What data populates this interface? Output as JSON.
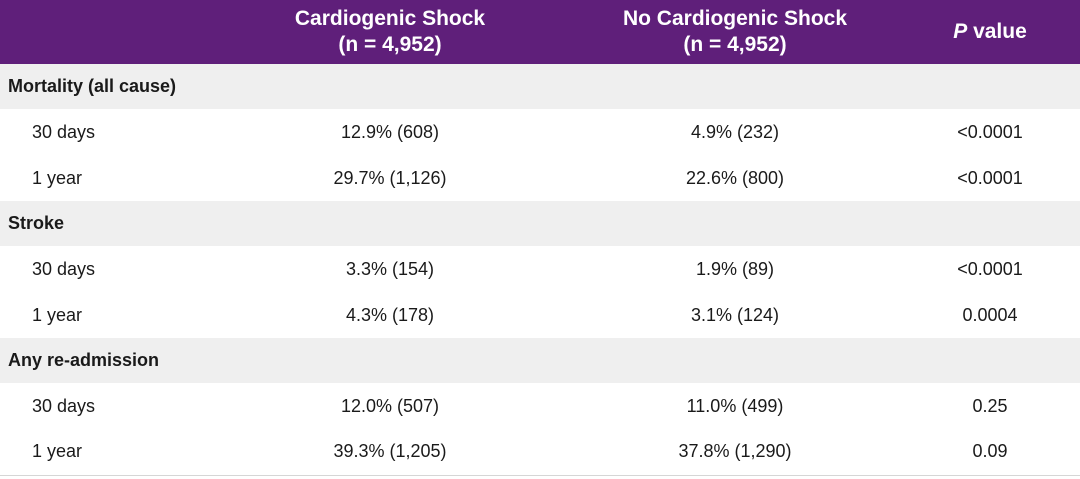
{
  "header": {
    "col1_line1": "Cardiogenic Shock",
    "col1_line2": "(n = 4,952)",
    "col2_line1": "No Cardiogenic Shock",
    "col2_line2": "(n = 4,952)",
    "col3_italic": "P",
    "col3_rest": " value"
  },
  "sections": [
    {
      "title": "Mortality (all cause)",
      "rows": [
        {
          "label": "30 days",
          "cs": "12.9% (608)",
          "ncs": "4.9% (232)",
          "p": "<0.0001"
        },
        {
          "label": "1 year",
          "cs": "29.7% (1,126)",
          "ncs": "22.6% (800)",
          "p": "<0.0001"
        }
      ]
    },
    {
      "title": "Stroke",
      "rows": [
        {
          "label": "30 days",
          "cs": "3.3% (154)",
          "ncs": "1.9% (89)",
          "p": "<0.0001"
        },
        {
          "label": "1 year",
          "cs": "4.3% (178)",
          "ncs": "3.1% (124)",
          "p": "0.0004"
        }
      ]
    },
    {
      "title": "Any re-admission",
      "rows": [
        {
          "label": "30 days",
          "cs": "12.0% (507)",
          "ncs": "11.0% (499)",
          "p": "0.25"
        },
        {
          "label": "1 year",
          "cs": "39.3% (1,205)",
          "ncs": "37.8% (1,290)",
          "p": "0.09"
        }
      ]
    }
  ],
  "colors": {
    "header_bg": "#5f1f7a",
    "section_bg": "#efefef"
  }
}
